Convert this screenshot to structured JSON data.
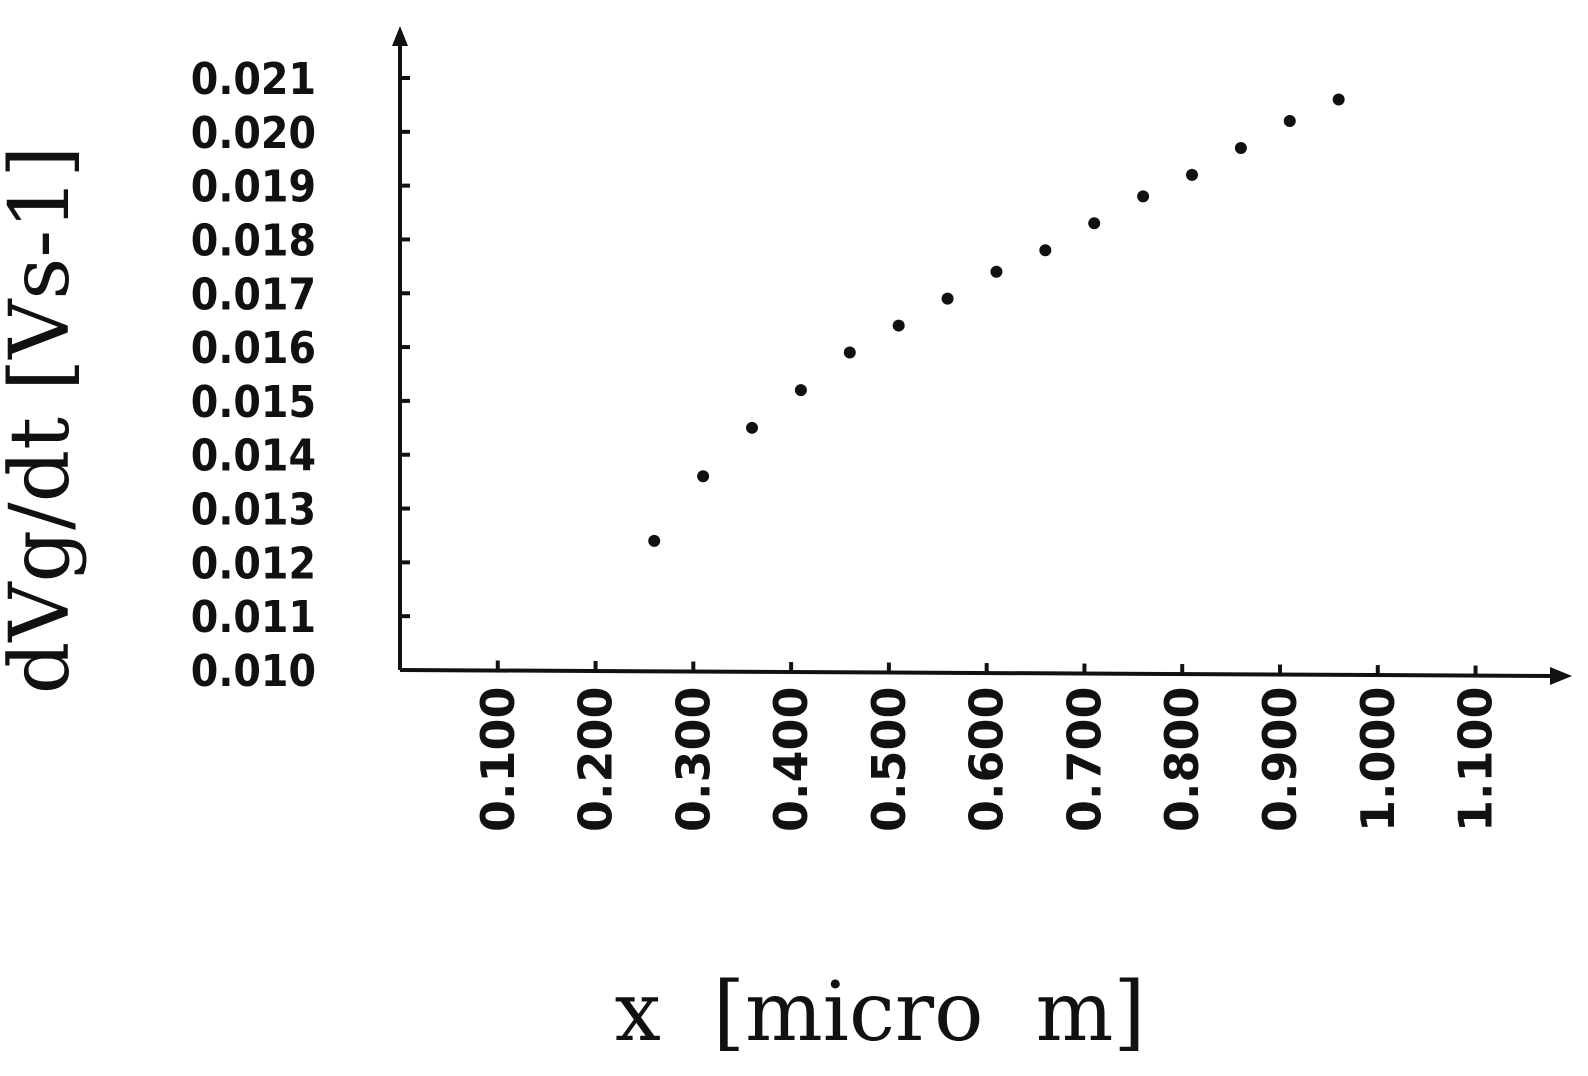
{
  "chart_data": {
    "type": "scatter",
    "title": "",
    "xlabel": "x  [micro  m]",
    "ylabel": "dVg/dt  [Vs-1]",
    "xlim": [
      0.0,
      1.2
    ],
    "ylim": [
      0.01,
      0.021
    ],
    "grid": false,
    "x_ticks": [
      "0.100",
      "0.200",
      "0.300",
      "0.400",
      "0.500",
      "0.600",
      "0.700",
      "0.800",
      "0.900",
      "1.000",
      "1.100"
    ],
    "y_ticks": [
      "0.021",
      "0.020",
      "0.019",
      "0.018",
      "0.017",
      "0.016",
      "0.015",
      "0.014",
      "0.013",
      "0.012",
      "0.011",
      "0.010"
    ],
    "series": [
      {
        "x": [
          0.26,
          0.31,
          0.36,
          0.41,
          0.46,
          0.51,
          0.56,
          0.61,
          0.66,
          0.71,
          0.76,
          0.81,
          0.86,
          0.91,
          0.96
        ],
        "y": [
          0.0124,
          0.0136,
          0.0145,
          0.0152,
          0.0159,
          0.0164,
          0.0169,
          0.0174,
          0.0178,
          0.0183,
          0.0188,
          0.0192,
          0.0197,
          0.0202,
          0.0206
        ]
      }
    ]
  }
}
